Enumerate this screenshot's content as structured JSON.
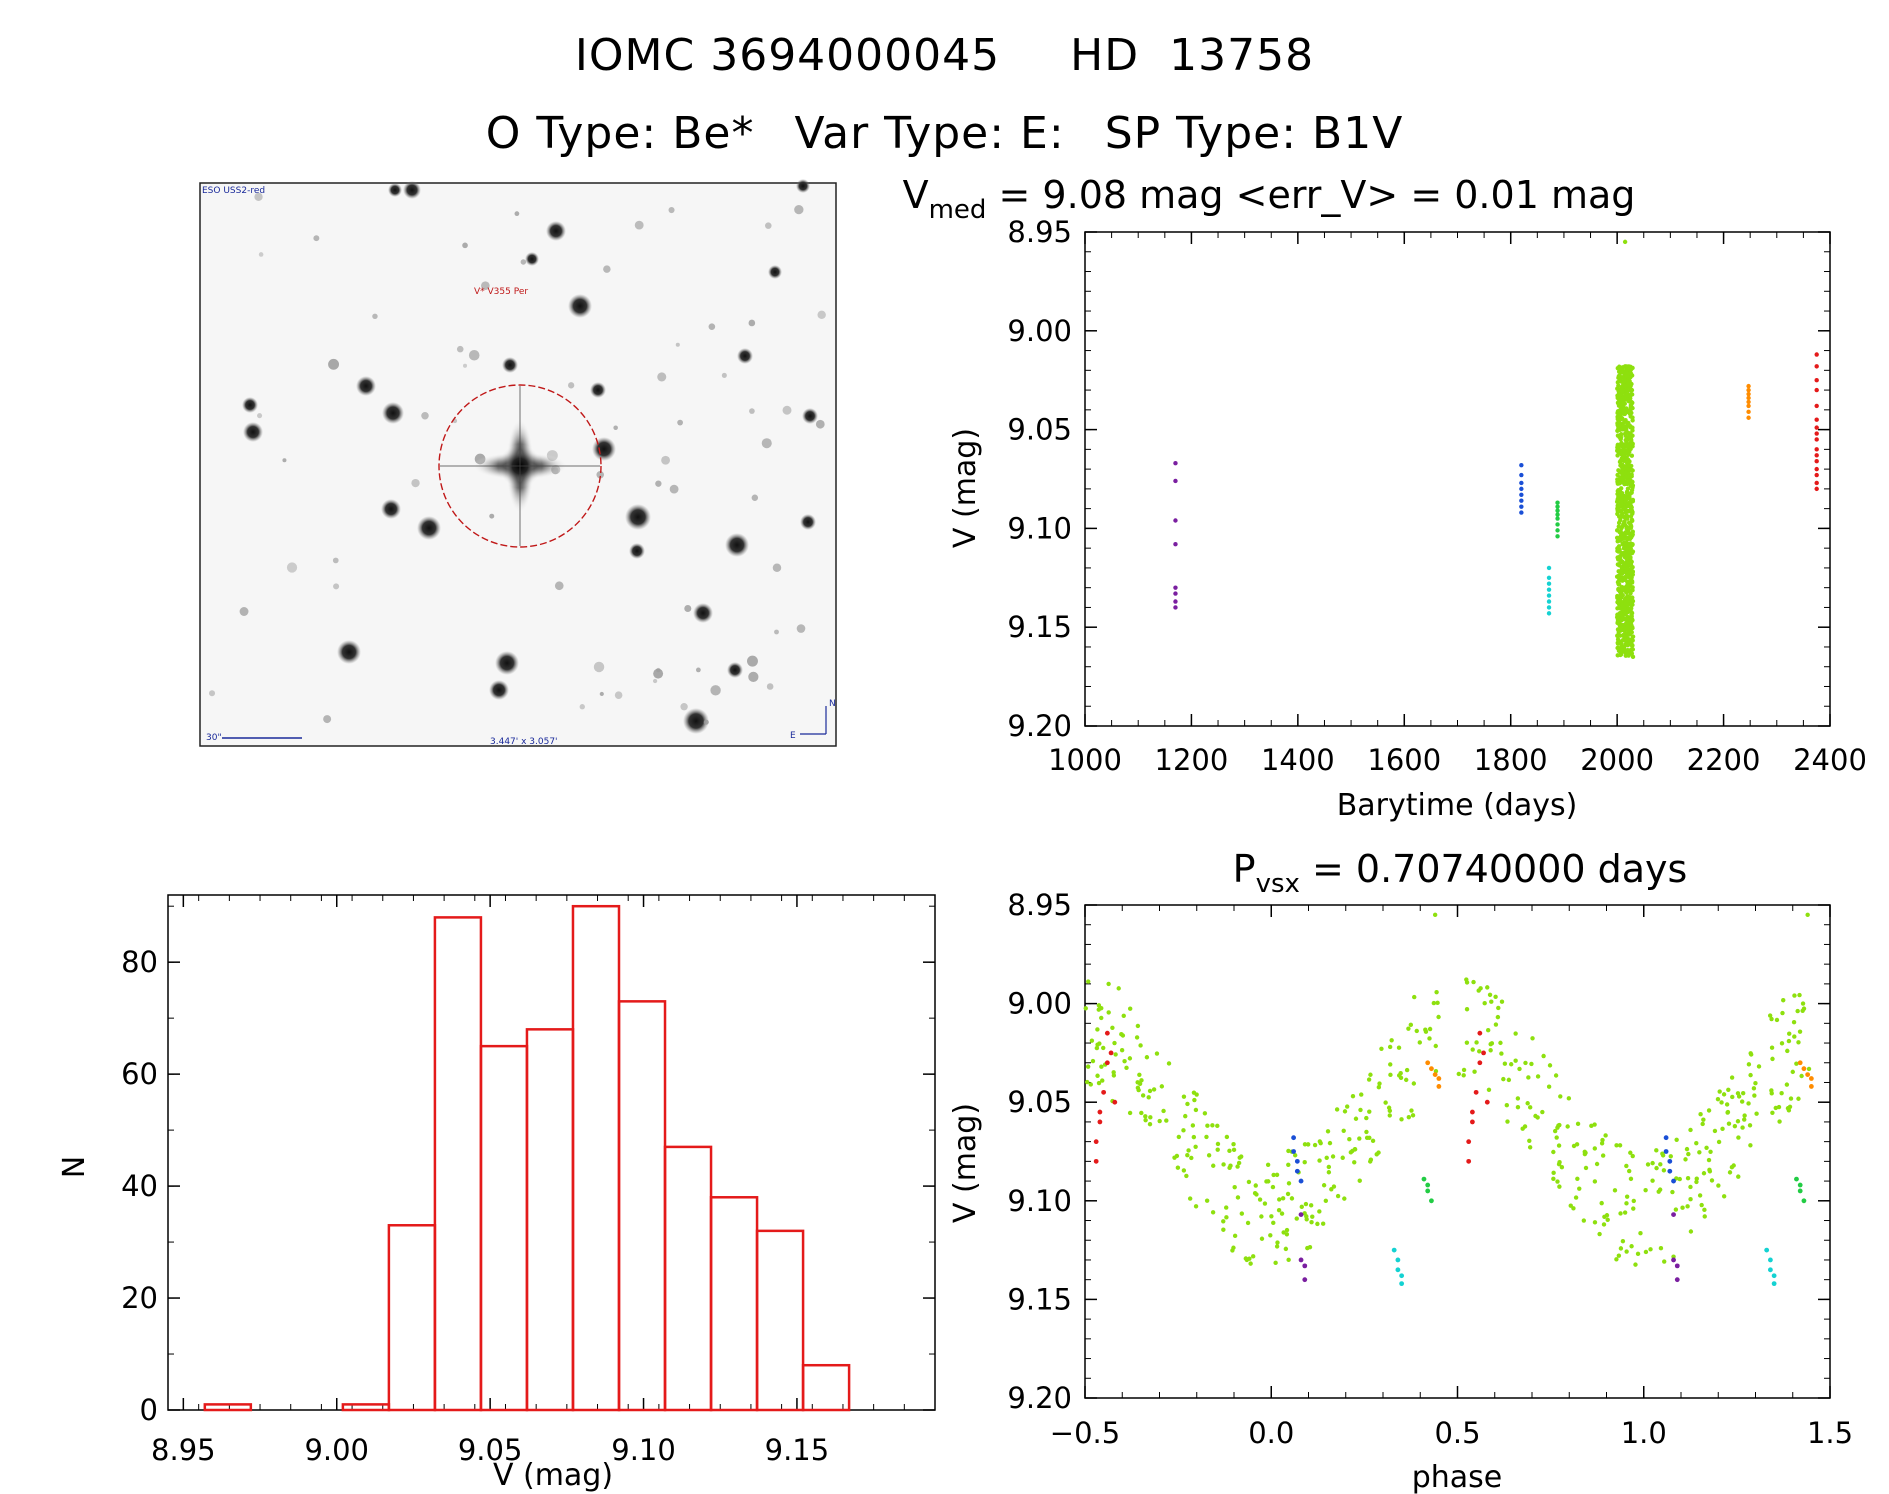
{
  "header": {
    "id1": "IOMC 3694000045",
    "id2": "HD  13758",
    "otype": "O Type: Be*",
    "vartype": "Var Type: E:",
    "sptype": "SP Type: B1V"
  },
  "finder": {
    "survey_label": "ESO USS2-red",
    "target_label": "V* V355 Per",
    "scale_label": "30\"",
    "fov_label": "3.447' x 3.057'",
    "north_label": "N",
    "east_label": "E"
  },
  "chart_data": [
    {
      "type": "scatter",
      "title_main": "V",
      "title_sub": "med",
      "title_rest": " = 9.08 mag <err_V> = 0.01 mag",
      "xlabel": "Barytime (days)",
      "ylabel": "V (mag)",
      "xlim": [
        1000,
        2400
      ],
      "ylim": [
        9.2,
        8.95
      ],
      "xticks": [
        "1000",
        "1200",
        "1400",
        "1600",
        "1800",
        "2000",
        "2200",
        "2400"
      ],
      "yticks": [
        "8.95",
        "9.00",
        "9.05",
        "9.10",
        "9.15",
        "9.20"
      ],
      "series": [
        {
          "color": "#7a1fa0",
          "x": [
            1170,
            1170,
            1170,
            1170,
            1170,
            1170,
            1170,
            1170
          ],
          "y": [
            9.067,
            9.076,
            9.096,
            9.108,
            9.13,
            9.133,
            9.137,
            9.14
          ]
        },
        {
          "color": "#1a4fd6",
          "x": [
            1820,
            1820,
            1820,
            1820,
            1820,
            1820,
            1820,
            1820
          ],
          "y": [
            9.068,
            9.073,
            9.077,
            9.08,
            9.083,
            9.086,
            9.089,
            9.092
          ]
        },
        {
          "color": "#14d2d2",
          "x": [
            1872,
            1872,
            1872,
            1872,
            1872,
            1872,
            1872,
            1872
          ],
          "y": [
            9.12,
            9.125,
            9.128,
            9.131,
            9.134,
            9.137,
            9.14,
            9.143
          ]
        },
        {
          "color": "#22cc44",
          "x": [
            1888,
            1888,
            1888,
            1888,
            1888,
            1888,
            1888,
            1888
          ],
          "y": [
            9.087,
            9.089,
            9.091,
            9.093,
            9.095,
            9.098,
            9.101,
            9.104
          ]
        },
        {
          "color": "#ff8c00",
          "x": [
            2247,
            2247,
            2247,
            2247,
            2247,
            2247,
            2247,
            2247
          ],
          "y": [
            9.028,
            9.03,
            9.032,
            9.034,
            9.036,
            9.038,
            9.041,
            9.044
          ]
        },
        {
          "color": "#e41a1a",
          "x": [
            2375,
            2375,
            2375,
            2375,
            2375,
            2375,
            2375,
            2375,
            2375,
            2375,
            2375,
            2375,
            2375,
            2375,
            2375,
            2375
          ],
          "y": [
            9.012,
            9.018,
            9.025,
            9.03,
            9.038,
            9.045,
            9.049,
            9.052,
            9.055,
            9.06,
            9.063,
            9.066,
            9.07,
            9.073,
            9.077,
            9.08
          ]
        },
        {
          "color": "#8ee00e",
          "x": [
            2015
          ],
          "y": [
            8.955
          ],
          "band": [
            9.018,
            9.165
          ],
          "xspan": [
            2000,
            2030
          ]
        }
      ]
    },
    {
      "type": "bar",
      "xlabel": "V (mag)",
      "ylabel": "N",
      "xlim": [
        8.945,
        9.195
      ],
      "ylim": [
        0,
        92
      ],
      "xticks": [
        "8.95",
        "9.00",
        "9.05",
        "9.10",
        "9.15"
      ],
      "yticks": [
        "0",
        "20",
        "40",
        "60",
        "80"
      ],
      "bin_width": 0.015,
      "bin_starts": [
        8.957,
        8.972,
        8.987,
        9.002,
        9.017,
        9.032,
        9.047,
        9.062,
        9.077,
        9.092,
        9.107,
        9.122,
        9.137,
        9.152
      ],
      "values": [
        1,
        0,
        0,
        1,
        33,
        88,
        65,
        68,
        90,
        73,
        47,
        38,
        32,
        8
      ]
    },
    {
      "type": "scatter",
      "title_main": "P",
      "title_sub": "vsx",
      "title_rest": " = 0.70740000 days",
      "xlabel": "phase",
      "ylabel": "V (mag)",
      "xlim": [
        -0.5,
        1.5
      ],
      "ylim": [
        9.2,
        8.95
      ],
      "xticks": [
        "−0.5",
        "0.0",
        "0.5",
        "1.0",
        "1.5"
      ],
      "yticks": [
        "8.95",
        "9.00",
        "9.05",
        "9.10",
        "9.15",
        "9.20"
      ],
      "series": [
        {
          "color": "#e41a1a",
          "x": [
            -0.47,
            -0.46,
            -0.45,
            -0.44,
            -0.44,
            -0.43,
            -0.42,
            -0.47,
            -0.46
          ],
          "y": [
            9.07,
            9.055,
            9.045,
            9.03,
            9.015,
            9.025,
            9.05,
            9.08,
            9.06
          ]
        },
        {
          "color": "#1a4fd6",
          "x": [
            0.06,
            0.06,
            0.07,
            0.07,
            0.08
          ],
          "y": [
            9.068,
            9.075,
            9.08,
            9.085,
            9.09
          ]
        },
        {
          "color": "#7a1fa0",
          "x": [
            0.08,
            0.08,
            0.09,
            0.09
          ],
          "y": [
            9.107,
            9.13,
            9.133,
            9.14
          ]
        },
        {
          "color": "#14d2d2",
          "x": [
            0.33,
            0.34,
            0.34,
            0.35,
            0.35
          ],
          "y": [
            9.125,
            9.13,
            9.135,
            9.138,
            9.142
          ]
        },
        {
          "color": "#22cc44",
          "x": [
            0.41,
            0.42,
            0.42,
            0.43
          ],
          "y": [
            9.089,
            9.092,
            9.095,
            9.1
          ]
        },
        {
          "color": "#ff8c00",
          "x": [
            0.42,
            0.43,
            0.44,
            0.45,
            0.45
          ],
          "y": [
            9.03,
            9.033,
            9.036,
            9.038,
            9.042
          ]
        }
      ]
    }
  ]
}
